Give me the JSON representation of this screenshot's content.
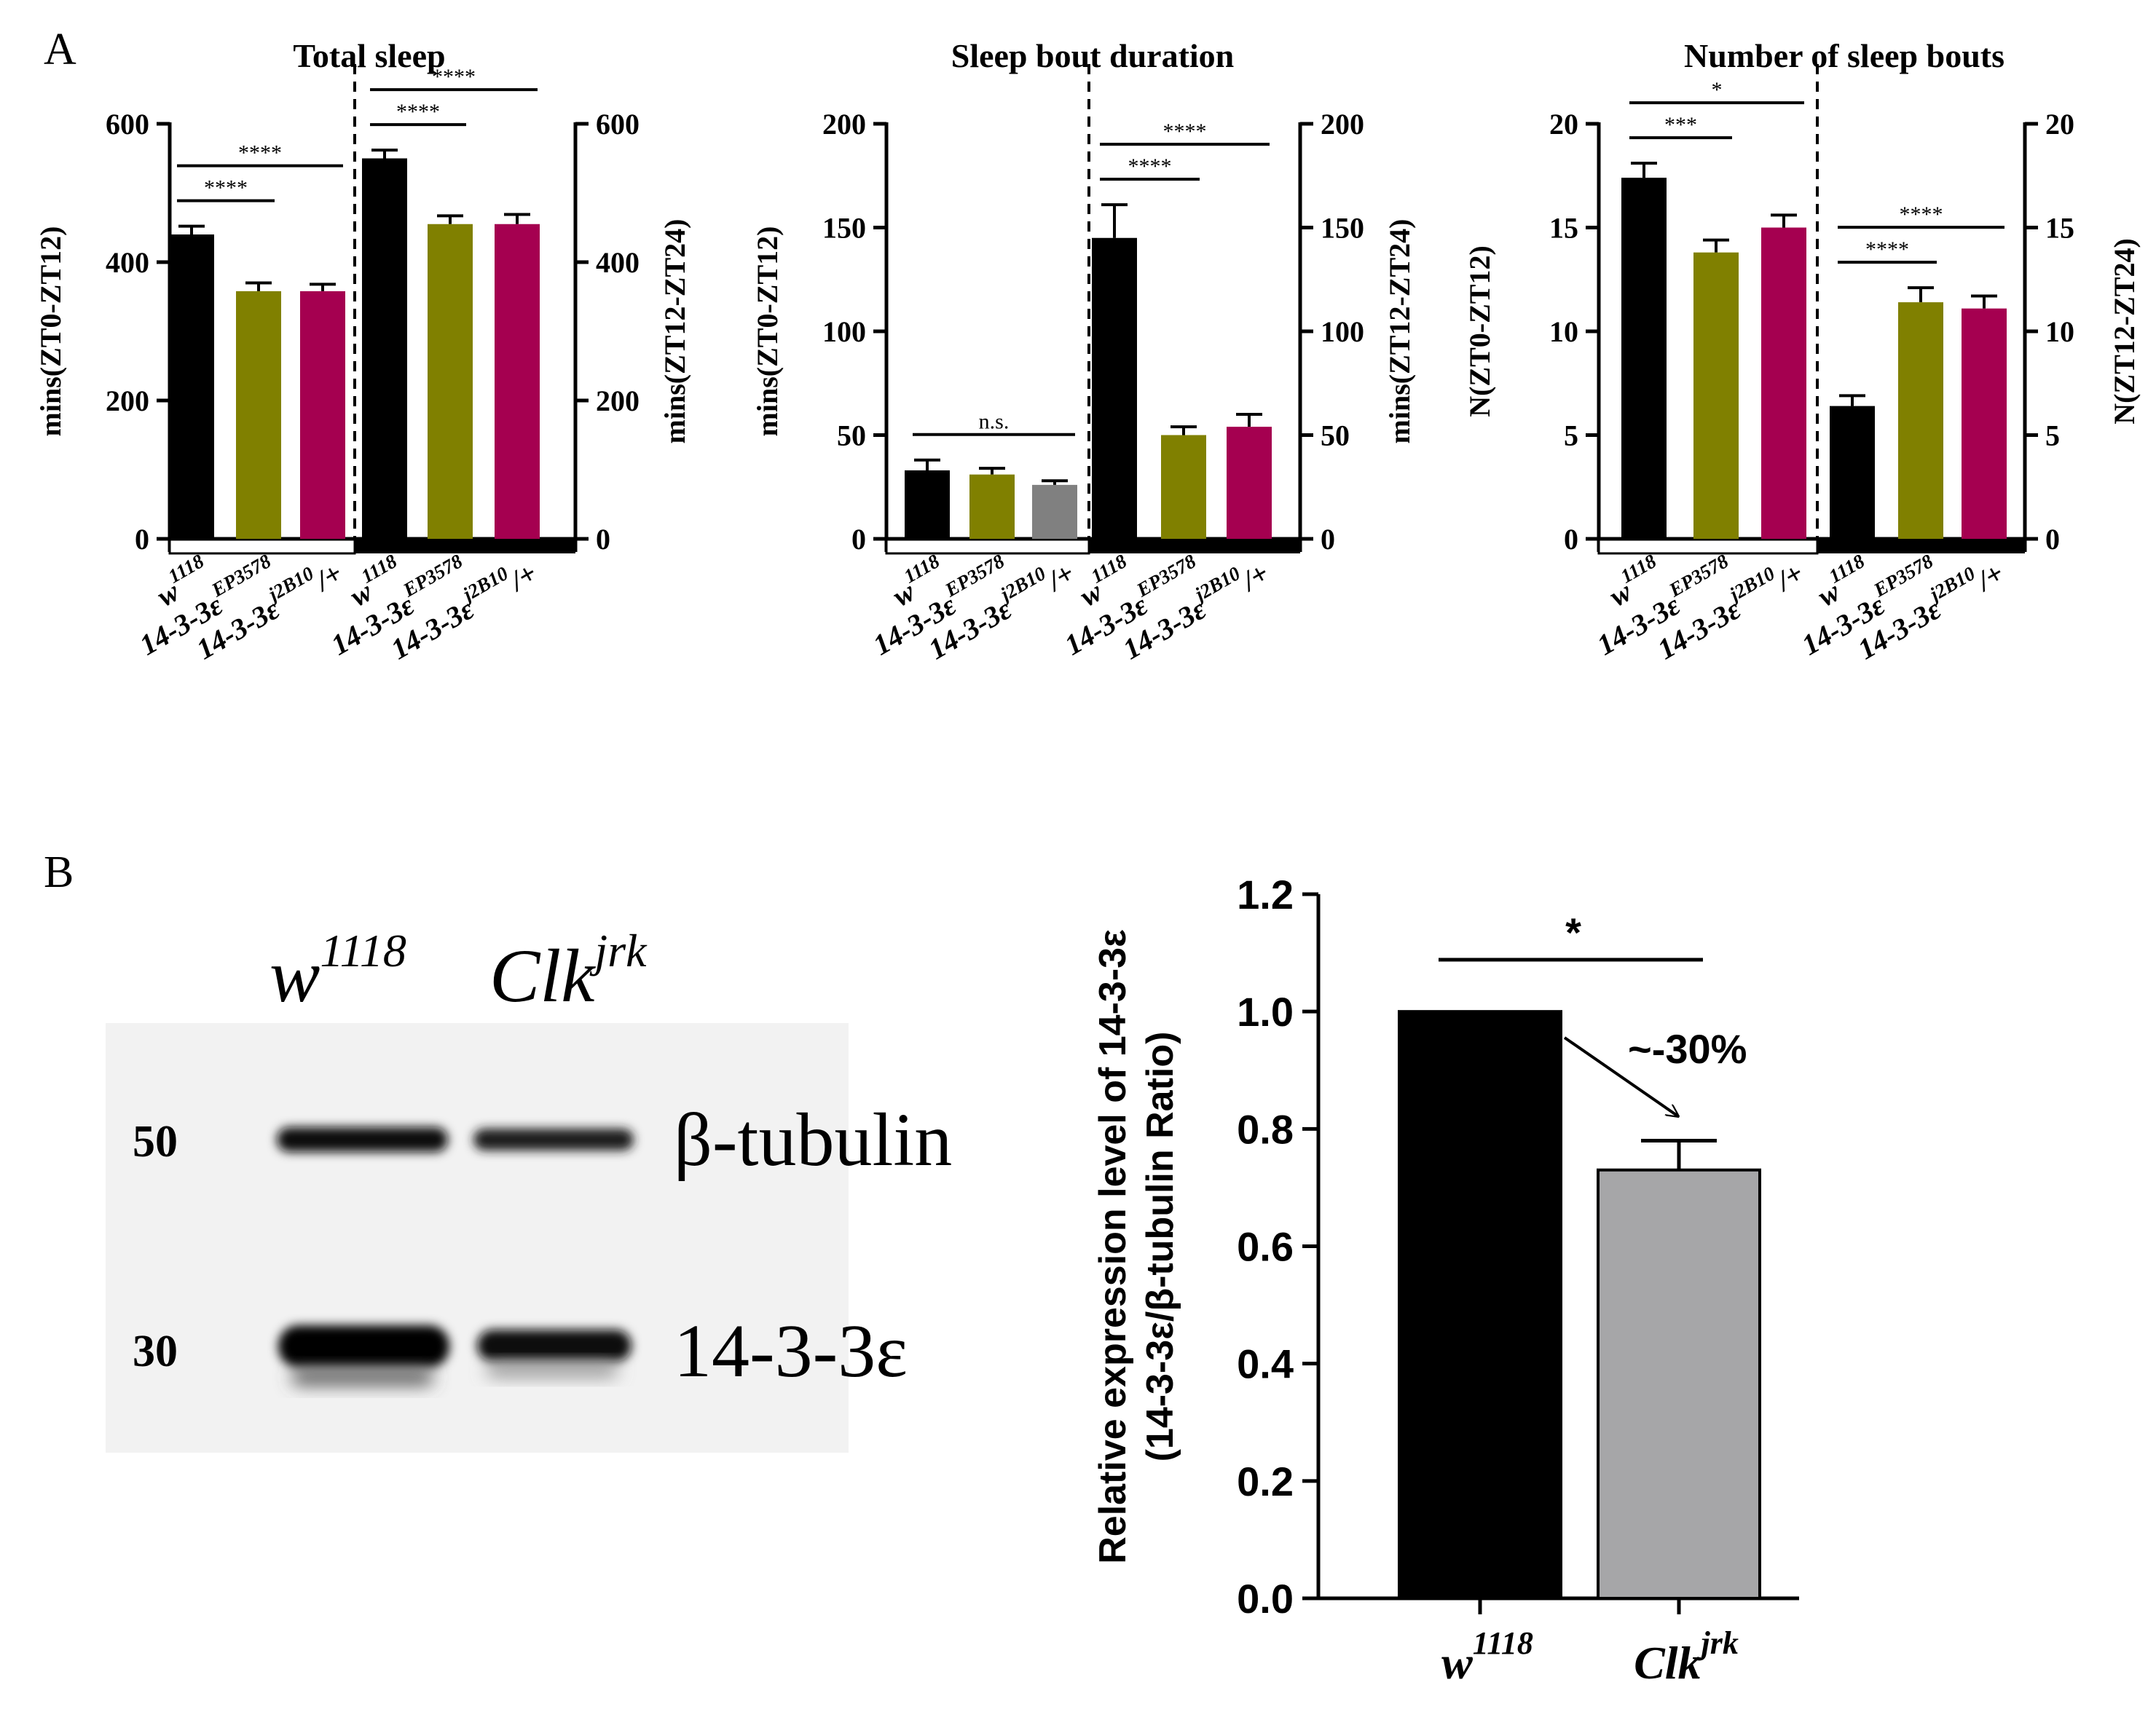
{
  "figure": {
    "panel_a_label": "A",
    "panel_b_label": "B"
  },
  "colors": {
    "black": "#000000",
    "olive": "#808000",
    "magenta": "#A50050",
    "grey": "#808080",
    "lightgrey": "#A6A6A8"
  },
  "genotypes": [
    {
      "base": "w",
      "sup": "1118"
    },
    {
      "base": "14-3-3ε",
      "sup": "EP3578"
    },
    {
      "base": "14-3-3ε",
      "sup": "j2B10",
      "tail": "/+"
    }
  ],
  "chart_data": [
    {
      "type": "bar",
      "id": "total-sleep",
      "title": "Total sleep",
      "ylabel_left": "mins(ZT0-ZT12)",
      "ylabel_right": "mins(ZT12-ZT24)",
      "ylim": [
        0,
        600
      ],
      "yticks": [
        0,
        200,
        400,
        600
      ],
      "phases": [
        {
          "phase": "ZT0-ZT12",
          "values": [
            440,
            358,
            358
          ],
          "errors": [
            12,
            12,
            10
          ],
          "colors": [
            "#000000",
            "#808000",
            "#A50050"
          ]
        },
        {
          "phase": "ZT12-ZT24",
          "values": [
            550,
            455,
            455
          ],
          "errors": [
            12,
            12,
            14
          ],
          "colors": [
            "#000000",
            "#808000",
            "#A50050"
          ]
        }
      ],
      "significance": [
        {
          "phase": 0,
          "from": 0,
          "to": 1,
          "label": "****"
        },
        {
          "phase": 0,
          "from": 0,
          "to": 2,
          "label": "****"
        },
        {
          "phase": 1,
          "from": 0,
          "to": 1,
          "label": "****"
        },
        {
          "phase": 1,
          "from": 0,
          "to": 2,
          "label": "****"
        }
      ]
    },
    {
      "type": "bar",
      "id": "sleep-bout-duration",
      "title": "Sleep bout duration",
      "ylabel_left": "mins(ZT0-ZT12)",
      "ylabel_right": "mins(ZT12-ZT24)",
      "ylim": [
        0,
        200
      ],
      "yticks": [
        0,
        50,
        100,
        150,
        200
      ],
      "phases": [
        {
          "phase": "ZT0-ZT12",
          "values": [
            33,
            31,
            26
          ],
          "errors": [
            5,
            3,
            2
          ],
          "colors": [
            "#000000",
            "#808000",
            "#808080"
          ]
        },
        {
          "phase": "ZT12-ZT24",
          "values": [
            145,
            50,
            54
          ],
          "errors": [
            16,
            4,
            6
          ],
          "colors": [
            "#000000",
            "#808000",
            "#A50050"
          ]
        }
      ],
      "significance": [
        {
          "phase": 0,
          "from": 0,
          "to": 2,
          "label": "n.s."
        },
        {
          "phase": 1,
          "from": 0,
          "to": 1,
          "label": "****"
        },
        {
          "phase": 1,
          "from": 0,
          "to": 2,
          "label": "****"
        }
      ]
    },
    {
      "type": "bar",
      "id": "number-of-sleep-bouts",
      "title": "Number of sleep bouts",
      "ylabel_left": "N(ZT0-ZT12)",
      "ylabel_right": "N(ZT12-ZT24)",
      "ylim": [
        0,
        20
      ],
      "yticks": [
        0,
        5,
        10,
        15,
        20
      ],
      "phases": [
        {
          "phase": "ZT0-ZT12",
          "values": [
            17.4,
            13.8,
            15.0
          ],
          "errors": [
            0.7,
            0.6,
            0.6
          ],
          "colors": [
            "#000000",
            "#808000",
            "#A50050"
          ]
        },
        {
          "phase": "ZT12-ZT24",
          "values": [
            6.4,
            11.4,
            11.1
          ],
          "errors": [
            0.5,
            0.7,
            0.6
          ],
          "colors": [
            "#000000",
            "#808000",
            "#A50050"
          ]
        }
      ],
      "significance": [
        {
          "phase": 0,
          "from": 0,
          "to": 1,
          "label": "***"
        },
        {
          "phase": 0,
          "from": 0,
          "to": 2,
          "label": "*"
        },
        {
          "phase": 1,
          "from": 0,
          "to": 1,
          "label": "****"
        },
        {
          "phase": 1,
          "from": 0,
          "to": 2,
          "label": "****"
        }
      ]
    },
    {
      "type": "bar",
      "id": "relative-expression",
      "ylabel_line1": "Relative expression level of 14-3-3ε",
      "ylabel_line2": "(14-3-3ε/β-tubulin Ratio)",
      "ylim": [
        0,
        1.2
      ],
      "yticks": [
        "0.0",
        "0.2",
        "0.4",
        "0.6",
        "0.8",
        "1.0",
        "1.2"
      ],
      "categories": [
        {
          "base": "w",
          "sup": "1118"
        },
        {
          "base": "Clk",
          "sup": "jrk"
        }
      ],
      "values": [
        1.0,
        0.73
      ],
      "errors": [
        0,
        0.05
      ],
      "colors": [
        "#000000",
        "#A6A6A8"
      ],
      "significance": "*",
      "annotation": "~-30%"
    }
  ],
  "blot": {
    "lanes": [
      {
        "base": "w",
        "sup": "1118"
      },
      {
        "base": "Clk",
        "sup": "jrk"
      }
    ],
    "bands": [
      {
        "mw": "50",
        "protein": "β-tubulin"
      },
      {
        "mw": "30",
        "protein": "14-3-3ε"
      }
    ]
  }
}
